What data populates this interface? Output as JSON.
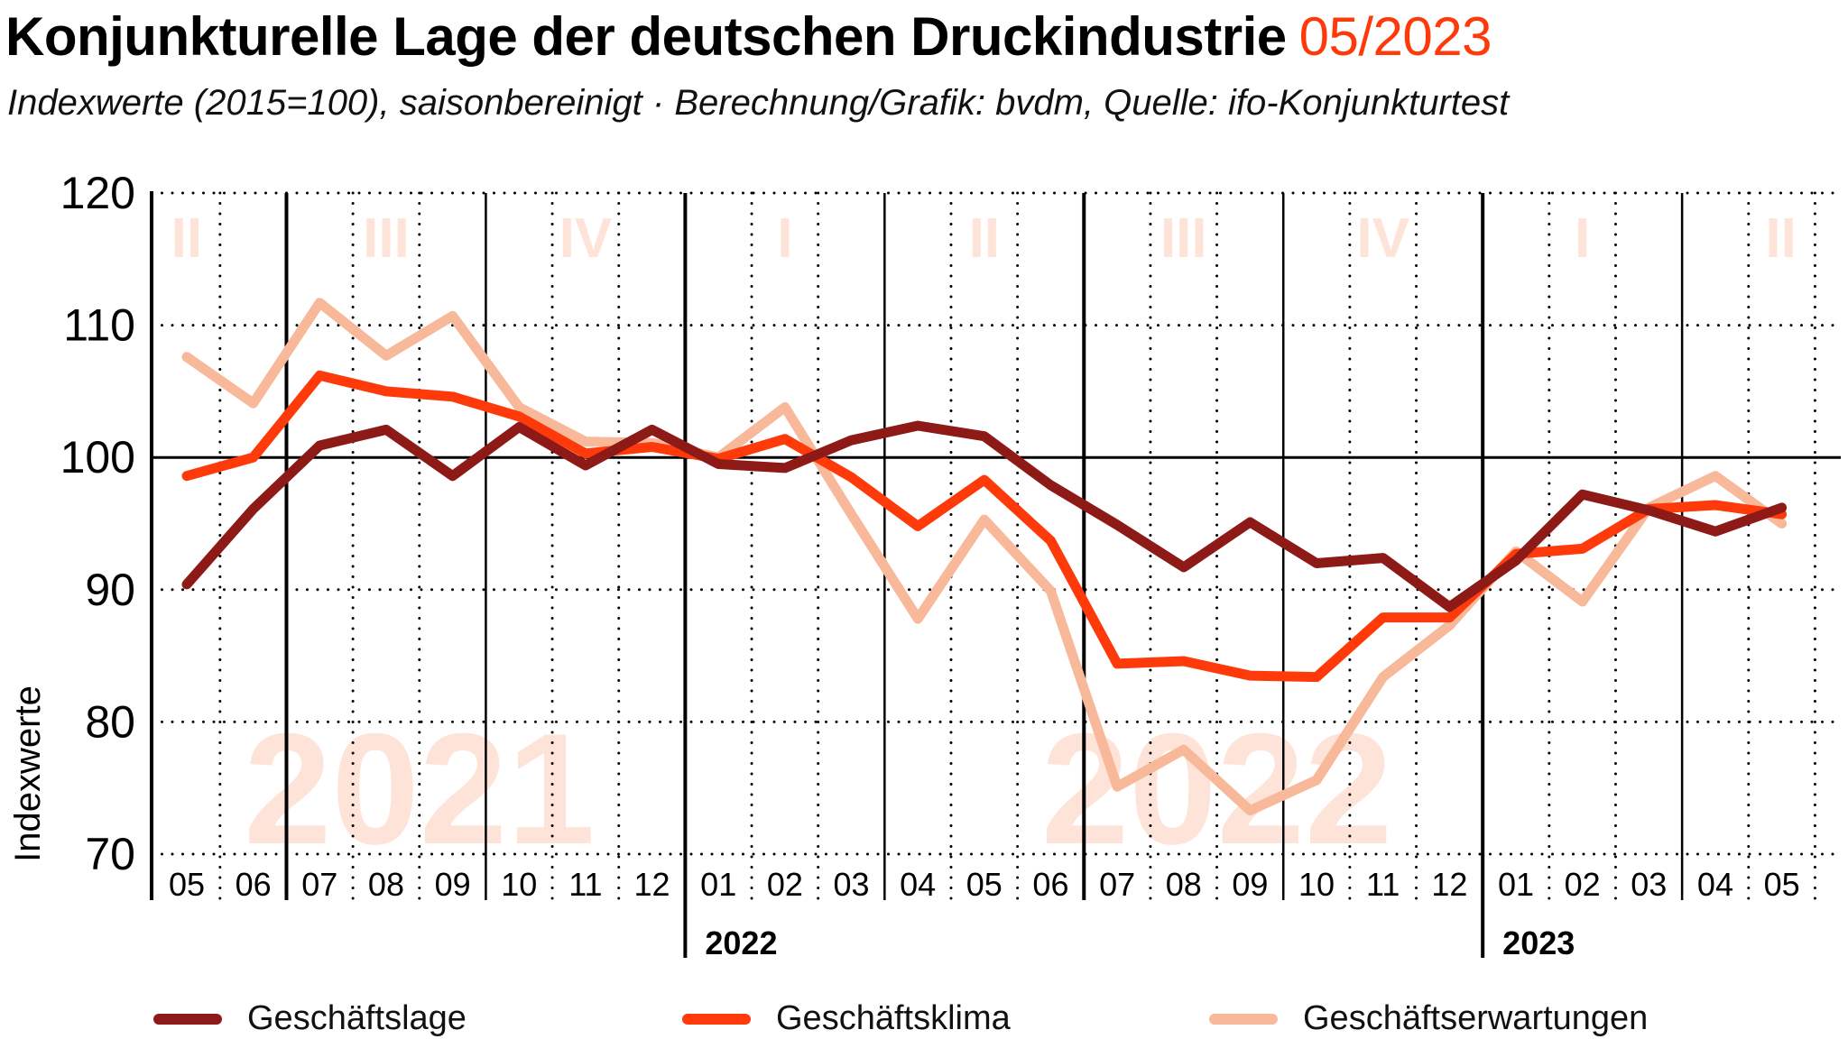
{
  "header": {
    "title": "Konjunkturelle Lage der deutschen Druckindustrie",
    "title_date": "05/2023",
    "subtitle": "Indexwerte (2015=100), saisonbereinigt · Berechnung/Grafik: bvdm, Quelle: ifo-Konjunkturtest"
  },
  "colors": {
    "accent": "#ff3a0a",
    "geschaeftslage": "#8e1a17",
    "geschaeftsklima": "#ff3a0a",
    "geschaeftserwartungen": "#f8b89a",
    "watermark": "#fde3d8"
  },
  "chart_data": {
    "type": "line",
    "title": "Konjunkturelle Lage der deutschen Druckindustrie 05/2023",
    "subtitle": "Indexwerte (2015=100), saisonbereinigt · Berechnung/Grafik: bvdm, Quelle: ifo-Konjunkturtest",
    "xlabel": "",
    "ylabel": "Indexwerte",
    "ylim": [
      70,
      120
    ],
    "yticks": [
      70,
      80,
      90,
      100,
      110,
      120
    ],
    "grid": true,
    "reference_line": 100,
    "legend_position": "bottom",
    "x": [
      "05",
      "06",
      "07",
      "08",
      "09",
      "10",
      "11",
      "12",
      "01",
      "02",
      "03",
      "04",
      "05",
      "06",
      "07",
      "08",
      "09",
      "10",
      "11",
      "12",
      "01",
      "02",
      "03",
      "04",
      "05"
    ],
    "x_years": [
      "2021",
      "2021",
      "2021",
      "2021",
      "2021",
      "2021",
      "2021",
      "2021",
      "2022",
      "2022",
      "2022",
      "2022",
      "2022",
      "2022",
      "2022",
      "2022",
      "2022",
      "2022",
      "2022",
      "2022",
      "2023",
      "2023",
      "2023",
      "2023",
      "2023"
    ],
    "year_labels": [
      {
        "label": "2022",
        "start_index": 8
      },
      {
        "label": "2023",
        "start_index": 20
      }
    ],
    "year_watermarks": [
      {
        "label": "2021",
        "center_index": 3.5
      },
      {
        "label": "2022",
        "center_index": 15.5
      }
    ],
    "quarter_labels": [
      {
        "label": "II",
        "center_index": 0.5
      },
      {
        "label": "III",
        "center_index": 3
      },
      {
        "label": "IV",
        "center_index": 6
      },
      {
        "label": "I",
        "center_index": 9
      },
      {
        "label": "II",
        "center_index": 12
      },
      {
        "label": "III",
        "center_index": 15
      },
      {
        "label": "IV",
        "center_index": 18
      },
      {
        "label": "I",
        "center_index": 21
      },
      {
        "label": "II",
        "center_index": 24
      }
    ],
    "series": [
      {
        "name": "Geschäftslage",
        "color": "#8e1a17",
        "values": [
          90.4,
          96.1,
          100.9,
          102.1,
          98.6,
          102.3,
          99.4,
          102.1,
          99.5,
          99.2,
          101.3,
          102.4,
          101.6,
          97.9,
          94.9,
          91.7,
          95.1,
          92.0,
          92.4,
          88.7,
          92.2,
          97.2,
          96.0,
          94.4,
          96.2
        ]
      },
      {
        "name": "Geschäftsklima",
        "color": "#ff3a0a",
        "values": [
          98.6,
          100.0,
          106.2,
          105.0,
          104.6,
          103.1,
          100.3,
          100.8,
          99.9,
          101.4,
          98.5,
          94.8,
          98.3,
          93.7,
          84.4,
          84.6,
          83.5,
          83.4,
          87.9,
          87.9,
          92.7,
          93.1,
          96.1,
          96.4,
          95.7
        ]
      },
      {
        "name": "Geschäftserwartungen",
        "color": "#f8b89a",
        "values": [
          107.6,
          104.1,
          111.7,
          107.7,
          110.7,
          103.8,
          101.2,
          101.1,
          100.0,
          103.8,
          95.7,
          87.8,
          95.3,
          89.9,
          75.1,
          77.9,
          73.3,
          75.6,
          83.4,
          87.3,
          92.9,
          89.1,
          96.2,
          98.6,
          95.0
        ]
      }
    ]
  },
  "legend": {
    "items": [
      {
        "label": "Geschäftslage",
        "color": "#8e1a17"
      },
      {
        "label": "Geschäftsklima",
        "color": "#ff3a0a"
      },
      {
        "label": "Geschäftserwartungen",
        "color": "#f8b89a"
      }
    ]
  }
}
